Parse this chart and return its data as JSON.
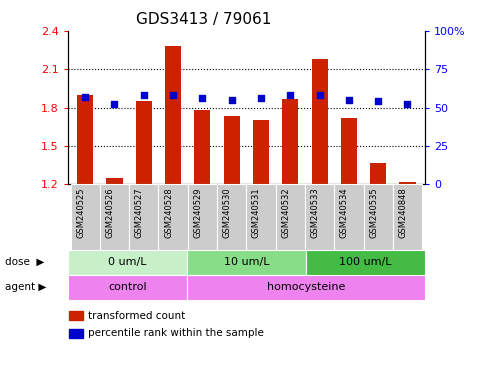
{
  "title": "GDS3413 / 79061",
  "samples": [
    "GSM240525",
    "GSM240526",
    "GSM240527",
    "GSM240528",
    "GSM240529",
    "GSM240530",
    "GSM240531",
    "GSM240532",
    "GSM240533",
    "GSM240534",
    "GSM240535",
    "GSM240848"
  ],
  "transformed_count": [
    1.9,
    1.25,
    1.85,
    2.28,
    1.78,
    1.73,
    1.7,
    1.87,
    2.18,
    1.72,
    1.37,
    1.22
  ],
  "percentile_rank": [
    57,
    52,
    58,
    58,
    56,
    55,
    56,
    58,
    58,
    55,
    54,
    52
  ],
  "ylim_left": [
    1.2,
    2.4
  ],
  "ylim_right": [
    0,
    100
  ],
  "yticks_left": [
    1.2,
    1.5,
    1.8,
    2.1,
    2.4
  ],
  "yticks_right": [
    0,
    25,
    50,
    75,
    100
  ],
  "ytick_labels_left": [
    "1.2",
    "1.5",
    "1.8",
    "2.1",
    "2.4"
  ],
  "ytick_labels_right": [
    "0",
    "25",
    "50",
    "75",
    "100%"
  ],
  "hlines": [
    1.5,
    1.8,
    2.1
  ],
  "dose_groups": [
    {
      "label": "0 um/L",
      "start": 0,
      "end": 4,
      "color": "#c8f0c8"
    },
    {
      "label": "10 um/L",
      "start": 4,
      "end": 8,
      "color": "#88dd88"
    },
    {
      "label": "100 um/L",
      "start": 8,
      "end": 12,
      "color": "#44bb44"
    }
  ],
  "agent_groups": [
    {
      "label": "control",
      "start": 0,
      "end": 4,
      "color": "#ee82ee"
    },
    {
      "label": "homocysteine",
      "start": 4,
      "end": 12,
      "color": "#ee82ee"
    }
  ],
  "bar_color": "#cc2200",
  "dot_color": "#0000cc",
  "background_color": "#ffffff",
  "xticklabel_bg": "#cccccc",
  "title_fontsize": 11,
  "tick_fontsize": 8,
  "bar_width": 0.55
}
